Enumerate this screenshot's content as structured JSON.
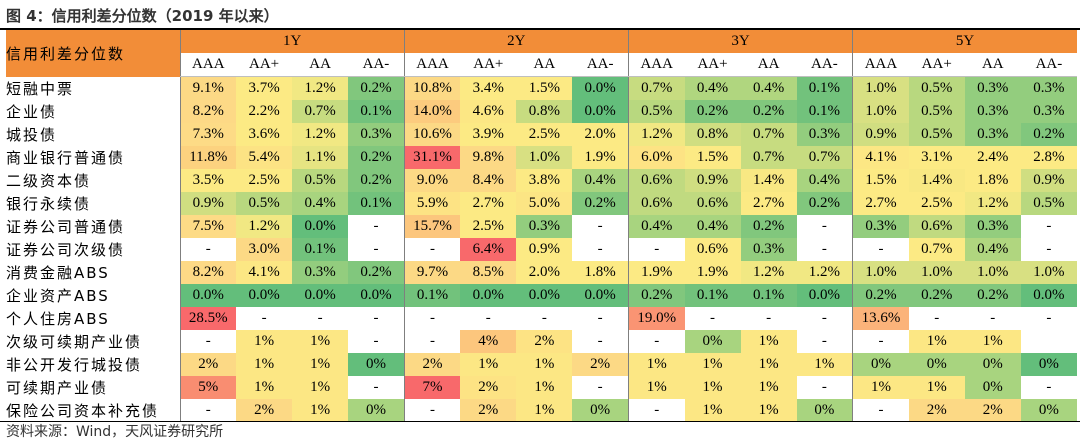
{
  "title": "图 4：信用利差分位数（2019 年以来）",
  "source": "资料来源：Wind，天风证券研究所",
  "corner_label": "信用利差分位数",
  "tenors": [
    "1Y",
    "2Y",
    "3Y",
    "5Y"
  ],
  "ratings": [
    "AAA",
    "AA+",
    "AA",
    "AA-"
  ],
  "rows": [
    {
      "label": "短融中票",
      "values": [
        "9.1%",
        "3.7%",
        "1.2%",
        "0.2%",
        "10.8%",
        "3.4%",
        "1.5%",
        "0.0%",
        "0.7%",
        "0.4%",
        "0.4%",
        "0.1%",
        "1.0%",
        "0.5%",
        "0.3%",
        "0.3%"
      ],
      "colors": [
        "#fcd985",
        "#fcea84",
        "#f1e883",
        "#81c77d",
        "#fcd985",
        "#fcea84",
        "#fcea84",
        "#63be7b",
        "#c7dc80",
        "#b0d67f",
        "#b0d67f",
        "#72c27c",
        "#d8e082",
        "#b8d87f",
        "#93cd7e",
        "#93cd7e"
      ]
    },
    {
      "label": "企业债",
      "values": [
        "8.2%",
        "2.2%",
        "0.7%",
        "0.1%",
        "14.0%",
        "4.6%",
        "0.8%",
        "0.0%",
        "0.5%",
        "0.2%",
        "0.2%",
        "0.1%",
        "1.0%",
        "0.5%",
        "0.3%",
        "0.3%"
      ],
      "colors": [
        "#fdd986",
        "#fcea84",
        "#c7dc80",
        "#72c27c",
        "#fccb7e",
        "#fce784",
        "#c7dc80",
        "#63be7b",
        "#b8d87f",
        "#81c77d",
        "#81c77d",
        "#72c27c",
        "#d8e082",
        "#b8d87f",
        "#93cd7e",
        "#93cd7e"
      ]
    },
    {
      "label": "城投债",
      "values": [
        "7.3%",
        "3.6%",
        "1.2%",
        "0.3%",
        "10.6%",
        "3.9%",
        "2.5%",
        "2.0%",
        "1.2%",
        "0.8%",
        "0.7%",
        "0.3%",
        "0.9%",
        "0.5%",
        "0.3%",
        "0.2%"
      ],
      "colors": [
        "#fddb86",
        "#fcea84",
        "#f1e883",
        "#93cd7e",
        "#fcd985",
        "#fcea84",
        "#fcea84",
        "#fcea84",
        "#f1e883",
        "#d0de81",
        "#c7dc80",
        "#93cd7e",
        "#d0de81",
        "#b8d87f",
        "#93cd7e",
        "#81c77d"
      ]
    },
    {
      "label": "商业银行普通债",
      "values": [
        "11.8%",
        "5.4%",
        "1.1%",
        "0.2%",
        "31.1%",
        "9.8%",
        "1.0%",
        "1.9%",
        "6.0%",
        "1.5%",
        "0.7%",
        "0.7%",
        "4.1%",
        "3.1%",
        "2.4%",
        "2.8%"
      ],
      "colors": [
        "#fcd27f",
        "#fce384",
        "#e6e482",
        "#81c77d",
        "#f8696b",
        "#fcd985",
        "#d8e082",
        "#fcea84",
        "#fde384",
        "#fcea84",
        "#c7dc80",
        "#c7dc80",
        "#fce784",
        "#fcea84",
        "#fcea84",
        "#fcea84"
      ]
    },
    {
      "label": "二级资本债",
      "values": [
        "3.5%",
        "2.5%",
        "0.5%",
        "0.2%",
        "9.0%",
        "8.4%",
        "3.8%",
        "0.4%",
        "0.6%",
        "0.9%",
        "1.4%",
        "0.4%",
        "1.5%",
        "1.4%",
        "1.8%",
        "0.9%"
      ],
      "colors": [
        "#fcea84",
        "#fcea84",
        "#b8d87f",
        "#81c77d",
        "#fcd985",
        "#fcd985",
        "#fcea84",
        "#a8d47f",
        "#c0da80",
        "#d0de81",
        "#f8e883",
        "#a8d47f",
        "#fcea84",
        "#f8e883",
        "#fcea84",
        "#d0de81"
      ]
    },
    {
      "label": "银行永续债",
      "values": [
        "0.9%",
        "0.5%",
        "0.4%",
        "0.1%",
        "5.9%",
        "2.7%",
        "5.0%",
        "0.2%",
        "0.6%",
        "0.6%",
        "2.7%",
        "0.2%",
        "2.7%",
        "2.5%",
        "1.2%",
        "0.5%"
      ],
      "colors": [
        "#d0de81",
        "#b8d87f",
        "#a8d47f",
        "#72c27c",
        "#fde384",
        "#fcea84",
        "#fce584",
        "#81c77d",
        "#c0da80",
        "#c0da80",
        "#fcea84",
        "#81c77d",
        "#fcea84",
        "#fcea84",
        "#f1e883",
        "#b8d87f"
      ]
    },
    {
      "label": "证券公司普通债",
      "values": [
        "7.5%",
        "1.2%",
        "0.0%",
        "-",
        "15.7%",
        "2.5%",
        "0.3%",
        "-",
        "0.4%",
        "0.4%",
        "0.2%",
        "-",
        "0.3%",
        "0.6%",
        "0.3%",
        "-"
      ],
      "colors": [
        "#fddb86",
        "#f1e883",
        "#63be7b",
        "#ffffff",
        "#fcc67d",
        "#fcea84",
        "#93cd7e",
        "#ffffff",
        "#a8d47f",
        "#a8d47f",
        "#81c77d",
        "#ffffff",
        "#93cd7e",
        "#c0da80",
        "#93cd7e",
        "#ffffff"
      ]
    },
    {
      "label": "证券公司次级债",
      "values": [
        "-",
        "3.0%",
        "0.1%",
        "-",
        "-",
        "6.4%",
        "0.9%",
        "-",
        "-",
        "0.6%",
        "0.3%",
        "-",
        "-",
        "0.7%",
        "0.4%",
        "-"
      ],
      "colors": [
        "#ffffff",
        "#fcd985",
        "#72c27c",
        "#ffffff",
        "#ffffff",
        "#f8696b",
        "#fcea84",
        "#ffffff",
        "#ffffff",
        "#fcea84",
        "#93cd7e",
        "#ffffff",
        "#ffffff",
        "#fcea84",
        "#b0d67f",
        "#ffffff"
      ]
    },
    {
      "label": "消费金融ABS",
      "values": [
        "8.2%",
        "4.1%",
        "0.3%",
        "0.2%",
        "9.7%",
        "8.5%",
        "2.0%",
        "1.8%",
        "1.9%",
        "1.9%",
        "1.2%",
        "1.2%",
        "1.0%",
        "1.0%",
        "1.0%",
        "1.0%"
      ],
      "colors": [
        "#fdd986",
        "#fce784",
        "#93cd7e",
        "#81c77d",
        "#fcd985",
        "#fcd985",
        "#fcea84",
        "#fcea84",
        "#fcea84",
        "#fcea84",
        "#f1e883",
        "#f1e883",
        "#d8e082",
        "#d8e082",
        "#d8e082",
        "#d8e082"
      ]
    },
    {
      "label": "企业资产ABS",
      "values": [
        "0.0%",
        "0.0%",
        "0.0%",
        "0.0%",
        "0.1%",
        "0.0%",
        "0.0%",
        "0.0%",
        "0.2%",
        "0.1%",
        "0.1%",
        "0.0%",
        "0.2%",
        "0.2%",
        "0.2%",
        "0.0%"
      ],
      "colors": [
        "#63be7b",
        "#63be7b",
        "#63be7b",
        "#63be7b",
        "#72c27c",
        "#63be7b",
        "#63be7b",
        "#63be7b",
        "#81c77d",
        "#72c27c",
        "#72c27c",
        "#63be7b",
        "#81c77d",
        "#81c77d",
        "#81c77d",
        "#63be7b"
      ]
    },
    {
      "label": "个人住房ABS",
      "values": [
        "28.5%",
        "-",
        "-",
        "-",
        "-",
        "-",
        "-",
        "-",
        "19.0%",
        "-",
        "-",
        "-",
        "13.6%",
        "-",
        "-",
        "-"
      ],
      "colors": [
        "#f8696b",
        "#ffffff",
        "#ffffff",
        "#ffffff",
        "#ffffff",
        "#ffffff",
        "#ffffff",
        "#ffffff",
        "#fa9473",
        "#ffffff",
        "#ffffff",
        "#ffffff",
        "#fbb37a",
        "#ffffff",
        "#ffffff",
        "#ffffff"
      ]
    },
    {
      "label": "次级可续期产业债",
      "values": [
        "-",
        "1%",
        "1%",
        "-",
        "-",
        "4%",
        "2%",
        "-",
        "-",
        "0%",
        "1%",
        "-",
        "-",
        "1%",
        "1%",
        ""
      ],
      "colors": [
        "#ffffff",
        "#fce784",
        "#fce784",
        "#ffffff",
        "#ffffff",
        "#fcc67d",
        "#fde384",
        "#ffffff",
        "#ffffff",
        "#a8d47f",
        "#fce784",
        "#ffffff",
        "#ffffff",
        "#fce784",
        "#fce784",
        "#ffffff"
      ]
    },
    {
      "label": "非公开发行城投债",
      "values": [
        "2%",
        "1%",
        "1%",
        "0%",
        "2%",
        "1%",
        "1%",
        "2%",
        "1%",
        "1%",
        "1%",
        "1%",
        "0%",
        "0%",
        "0%",
        "0%"
      ],
      "colors": [
        "#fcd985",
        "#fce784",
        "#fce784",
        "#63be7b",
        "#fcd985",
        "#fce784",
        "#fce784",
        "#fcd985",
        "#fce784",
        "#fce784",
        "#fce784",
        "#fce784",
        "#a8d47f",
        "#a8d47f",
        "#a8d47f",
        "#63be7b"
      ]
    },
    {
      "label": "可续期产业债",
      "values": [
        "5%",
        "1%",
        "1%",
        "-",
        "7%",
        "2%",
        "1%",
        "-",
        "1%",
        "1%",
        "1%",
        "-",
        "1%",
        "1%",
        "0%",
        "-"
      ],
      "colors": [
        "#f98d71",
        "#fce784",
        "#fce784",
        "#ffffff",
        "#f8696b",
        "#fde384",
        "#fce784",
        "#ffffff",
        "#fce784",
        "#fce784",
        "#fce784",
        "#ffffff",
        "#fce784",
        "#fce784",
        "#a8d47f",
        "#ffffff"
      ]
    },
    {
      "label": "保险公司资本补充债",
      "values": [
        "-",
        "2%",
        "1%",
        "0%",
        "-",
        "2%",
        "1%",
        "0%",
        "-",
        "1%",
        "1%",
        "0%",
        "-",
        "2%",
        "2%",
        "0%"
      ],
      "colors": [
        "#ffffff",
        "#fcd985",
        "#fce784",
        "#a8d47f",
        "#ffffff",
        "#fcd985",
        "#fce784",
        "#a8d47f",
        "#ffffff",
        "#fce784",
        "#fce784",
        "#a8d47f",
        "#ffffff",
        "#fcd985",
        "#fcd985",
        "#a8d47f"
      ]
    }
  ]
}
